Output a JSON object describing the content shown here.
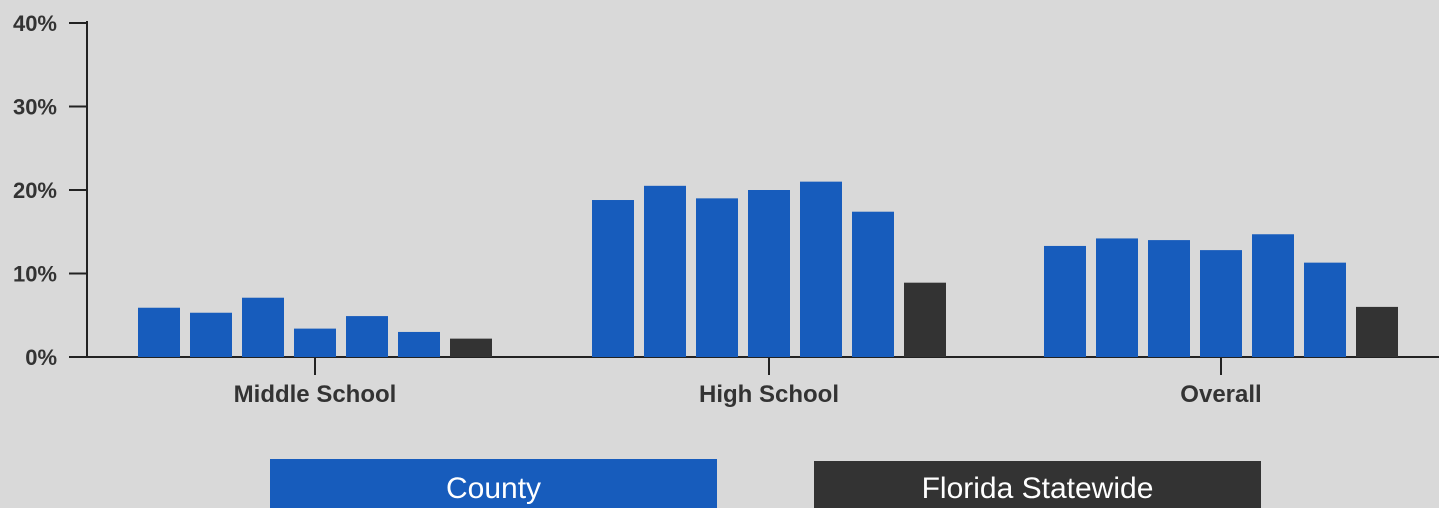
{
  "colors": {
    "background": "#d9d9d9",
    "county": "#175cbc",
    "statewide": "#333333",
    "axis": "#222222",
    "text": "#333333"
  },
  "chart_data": {
    "type": "bar",
    "title": "",
    "xlabel": "",
    "ylabel": "",
    "ylim": [
      0,
      40
    ],
    "yticks": [
      0,
      10,
      20,
      30,
      40
    ],
    "ytick_labels": [
      "0%",
      "10%",
      "20%",
      "30%",
      "40%"
    ],
    "categories": [
      "Middle School",
      "High School",
      "Overall"
    ],
    "groups": [
      {
        "category": "Middle School",
        "county_values": [
          5.9,
          5.3,
          7.1,
          3.4,
          4.9,
          3.0
        ],
        "statewide_value": 2.2
      },
      {
        "category": "High School",
        "county_values": [
          18.8,
          20.5,
          19.0,
          20.0,
          21.0,
          17.4
        ],
        "statewide_value": 8.9
      },
      {
        "category": "Overall",
        "county_values": [
          13.3,
          14.2,
          14.0,
          12.8,
          14.7,
          11.3
        ],
        "statewide_value": 6.0
      }
    ],
    "legend": {
      "position": "bottom",
      "county_label": "County",
      "statewide_label": "Florida Statewide"
    },
    "grid": false
  }
}
